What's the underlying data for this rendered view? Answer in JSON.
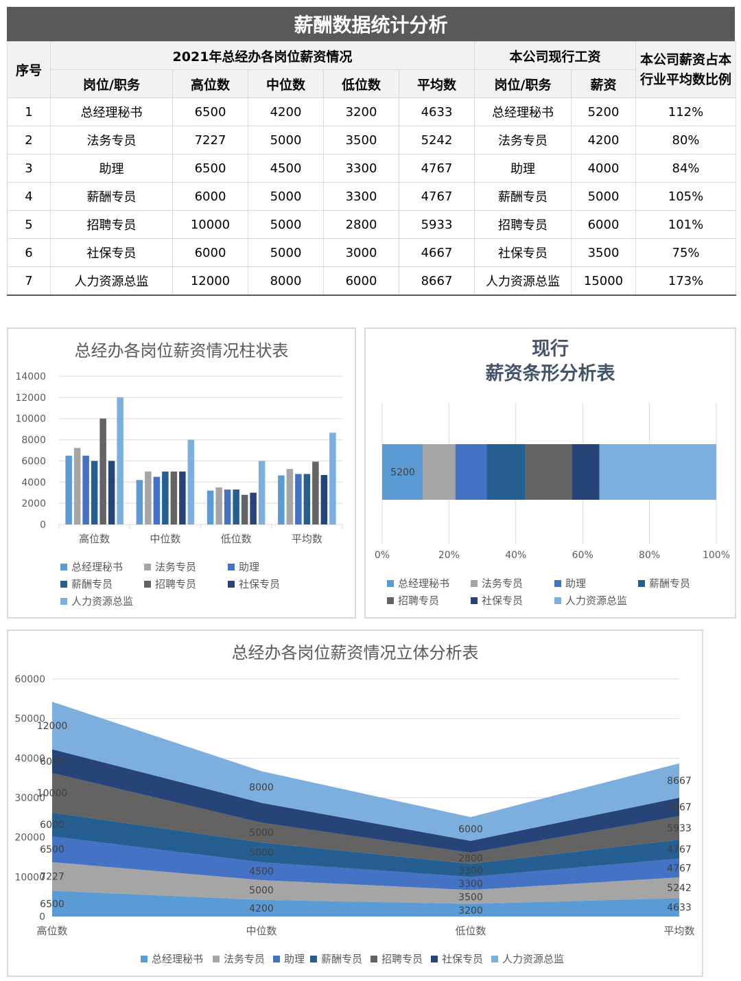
{
  "title": "薪酬数据统计分析",
  "table": {
    "col_index": "序号",
    "group_industry": "2021年总经办各岗位薪资情况",
    "group_company": "本公司现行工资",
    "col_ratio": "本公司薪资占本行业平均数比例",
    "headers_industry": [
      "岗位/职务",
      "高位数",
      "中位数",
      "低位数",
      "平均数"
    ],
    "headers_company": [
      "岗位/职务",
      "薪资"
    ],
    "rows": [
      {
        "idx": "1",
        "post": "总经理秘书",
        "high": "6500",
        "mid": "4200",
        "low": "3200",
        "avg": "4633",
        "cpost": "总经理秘书",
        "salary": "5200",
        "ratio": "112%"
      },
      {
        "idx": "2",
        "post": "法务专员",
        "high": "7227",
        "mid": "5000",
        "low": "3500",
        "avg": "5242",
        "cpost": "法务专员",
        "salary": "4200",
        "ratio": "80%"
      },
      {
        "idx": "3",
        "post": "助理",
        "high": "6500",
        "mid": "4500",
        "low": "3300",
        "avg": "4767",
        "cpost": "助理",
        "salary": "4000",
        "ratio": "84%"
      },
      {
        "idx": "4",
        "post": "薪酬专员",
        "high": "6000",
        "mid": "5000",
        "low": "3300",
        "avg": "4767",
        "cpost": "薪酬专员",
        "salary": "5000",
        "ratio": "105%"
      },
      {
        "idx": "5",
        "post": "招聘专员",
        "high": "10000",
        "mid": "5000",
        "low": "2800",
        "avg": "5933",
        "cpost": "招聘专员",
        "salary": "6000",
        "ratio": "101%"
      },
      {
        "idx": "6",
        "post": "社保专员",
        "high": "6000",
        "mid": "5000",
        "low": "3000",
        "avg": "4667",
        "cpost": "社保专员",
        "salary": "3500",
        "ratio": "75%"
      },
      {
        "idx": "7",
        "post": "人力资源总监",
        "high": "12000",
        "mid": "8000",
        "low": "6000",
        "avg": "8667",
        "cpost": "人力资源总监",
        "salary": "15000",
        "ratio": "173%"
      }
    ]
  },
  "colors": [
    "#5b9bd5",
    "#a5a5a5",
    "#4472c4",
    "#255e91",
    "#636363",
    "#264478",
    "#7cafdd"
  ],
  "chart_data": [
    {
      "type": "bar",
      "title": "总经办各岗位薪资情况柱状表",
      "categories": [
        "高位数",
        "中位数",
        "低位数",
        "平均数"
      ],
      "ylim": [
        0,
        14000
      ],
      "yticks": [
        "14000",
        "12000",
        "10000",
        "8000",
        "6000",
        "4000",
        "2000",
        "0"
      ],
      "legend_position": "bottom",
      "grid": true,
      "series": [
        {
          "name": "总经理秘书",
          "values": [
            6500,
            4200,
            3200,
            4633
          ]
        },
        {
          "name": "法务专员",
          "values": [
            7227,
            5000,
            3500,
            5242
          ]
        },
        {
          "name": "助理",
          "values": [
            6500,
            4500,
            3300,
            4767
          ]
        },
        {
          "name": "薪酬专员",
          "values": [
            6000,
            5000,
            3300,
            4767
          ]
        },
        {
          "name": "招聘专员",
          "values": [
            10000,
            5000,
            2800,
            5933
          ]
        },
        {
          "name": "社保专员",
          "values": [
            6000,
            5000,
            3000,
            4667
          ]
        },
        {
          "name": "人力资源总监",
          "values": [
            12000,
            8000,
            6000,
            8667
          ]
        }
      ]
    },
    {
      "type": "bar",
      "orientation": "horizontal-stacked-100",
      "title_line1": "现行",
      "title_line2": "薪资条形分析表",
      "xticks": [
        "0%",
        "20%",
        "40%",
        "60%",
        "80%",
        "100%"
      ],
      "data_label": "5200",
      "legend_position": "bottom",
      "grid": true,
      "series": [
        {
          "name": "总经理秘书",
          "values": [
            5200
          ]
        },
        {
          "name": "法务专员",
          "values": [
            4200
          ]
        },
        {
          "name": "助理",
          "values": [
            4000
          ]
        },
        {
          "name": "薪酬专员",
          "values": [
            5000
          ]
        },
        {
          "name": "招聘专员",
          "values": [
            6000
          ]
        },
        {
          "name": "社保专员",
          "values": [
            3500
          ]
        },
        {
          "name": "人力资源总监",
          "values": [
            15000
          ]
        }
      ]
    },
    {
      "type": "area",
      "stacked": true,
      "title": "总经办各岗位薪资情况立体分析表",
      "categories": [
        "高位数",
        "中位数",
        "低位数",
        "平均数"
      ],
      "ylim": [
        0,
        60000
      ],
      "yticks": [
        "60000",
        "50000",
        "40000",
        "30000",
        "20000",
        "10000",
        "0"
      ],
      "legend_position": "bottom",
      "grid": true,
      "series": [
        {
          "name": "总经理秘书",
          "values": [
            6500,
            4200,
            3200,
            4633
          ],
          "labels": [
            "6500",
            "4200",
            "3200",
            "4633"
          ]
        },
        {
          "name": "法务专员",
          "values": [
            7227,
            5000,
            3500,
            5242
          ],
          "labels": [
            "7227",
            "5000",
            "3500",
            "5242"
          ]
        },
        {
          "name": "助理",
          "values": [
            6500,
            4500,
            3300,
            4767
          ],
          "labels": [
            "6500",
            "4500",
            "3300",
            "4767"
          ]
        },
        {
          "name": "薪酬专员",
          "values": [
            6000,
            5000,
            3300,
            4767
          ],
          "labels": [
            "6000",
            "5000",
            "3300",
            "4767"
          ]
        },
        {
          "name": "招聘专员",
          "values": [
            10000,
            5000,
            2800,
            5933
          ],
          "labels": [
            "10000",
            "5000",
            "2800",
            "5933"
          ]
        },
        {
          "name": "社保专员",
          "values": [
            6000,
            5000,
            3000,
            4667
          ],
          "labels": [
            "6000",
            "",
            "",
            "4667"
          ]
        },
        {
          "name": "人力资源总监",
          "values": [
            12000,
            8000,
            6000,
            8667
          ],
          "labels": [
            "12000",
            "8000",
            "6000",
            "8667"
          ]
        }
      ]
    }
  ]
}
